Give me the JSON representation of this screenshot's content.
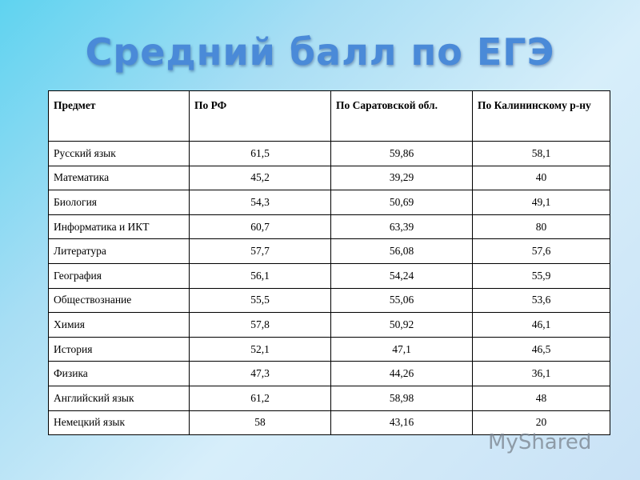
{
  "title": "Средний балл по ЕГЭ",
  "table": {
    "header": [
      "Предмет",
      "По РФ",
      "По Саратовской обл.",
      "По Калининскому р-ну"
    ],
    "rows": [
      [
        "Русский язык",
        "61,5",
        "59,86",
        "58,1"
      ],
      [
        "Математика",
        "45,2",
        "39,29",
        "40"
      ],
      [
        "Биология",
        "54,3",
        "50,69",
        "49,1"
      ],
      [
        "Информатика и ИКТ",
        "60,7",
        "63,39",
        "80"
      ],
      [
        "Литература",
        "57,7",
        "56,08",
        "57,6"
      ],
      [
        "География",
        "56,1",
        "54,24",
        "55,9"
      ],
      [
        "Обществознание",
        "55,5",
        "55,06",
        "53,6"
      ],
      [
        "Химия",
        "57,8",
        "50,92",
        "46,1"
      ],
      [
        "История",
        "52,1",
        "47,1",
        "46,5"
      ],
      [
        "Физика",
        "47,3",
        "44,26",
        "36,1"
      ],
      [
        "Английский язык",
        "61,2",
        "58,98",
        "48"
      ],
      [
        "Немецкий язык",
        "58",
        "43,16",
        "20"
      ]
    ]
  },
  "watermark": "MyShared"
}
